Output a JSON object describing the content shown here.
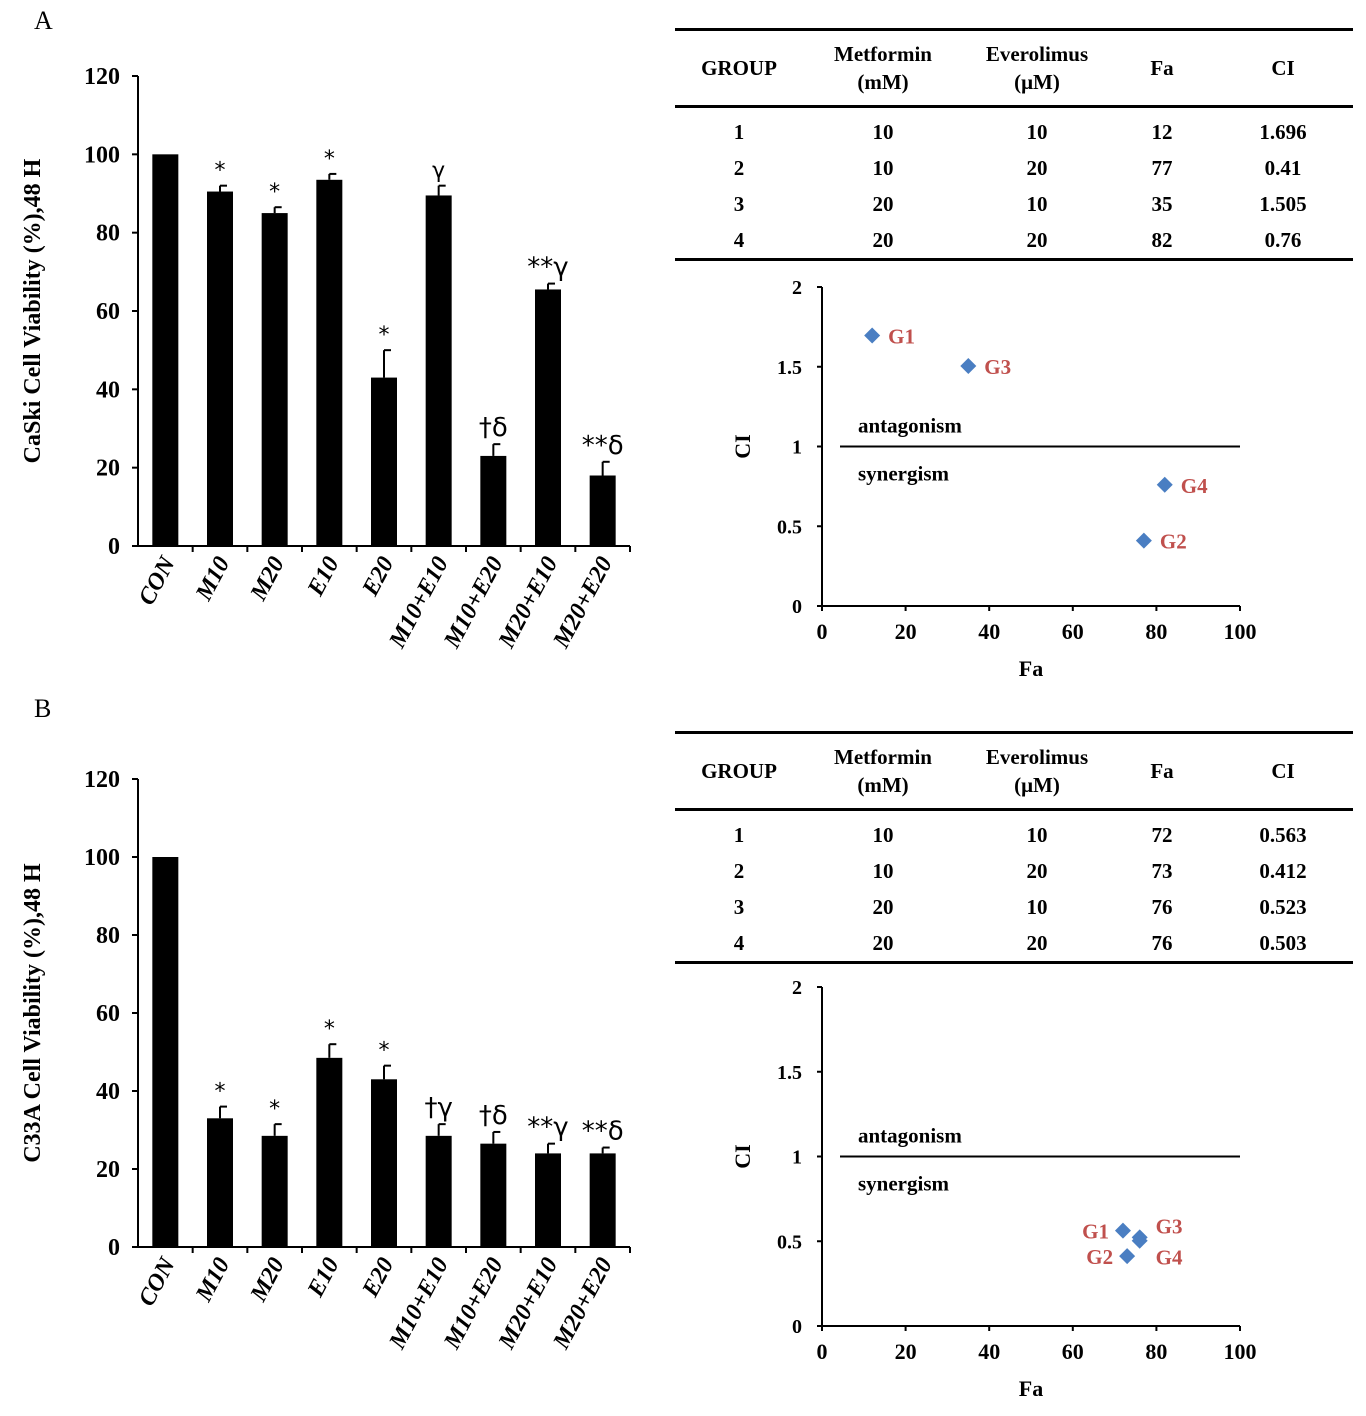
{
  "panels": [
    {
      "letter": "A",
      "bar_chart": {
        "type": "bar",
        "ylabel": "CaSki  Cell Viability (%),48 H",
        "ylim": [
          0,
          120
        ],
        "yticks": [
          0,
          20,
          40,
          60,
          80,
          100,
          120
        ],
        "categories": [
          "CON",
          "M10",
          "M20",
          "E10",
          "E20",
          "M10+E10",
          "M10+E20",
          "M20+E10",
          "M20+E20"
        ],
        "values": [
          100,
          90.5,
          85,
          93.5,
          43,
          89.5,
          23,
          65.5,
          18
        ],
        "errors": [
          0,
          1.5,
          1.5,
          1.5,
          7,
          2.5,
          3,
          1.5,
          3.5
        ],
        "annotations": [
          "",
          "*",
          "*",
          "*",
          "*",
          "γ",
          "†δ",
          "**γ",
          "**δ"
        ]
      },
      "table": {
        "headers": [
          "GROUP",
          "Metformin (mM)",
          "Everolimus (μM)",
          "Fa",
          "CI"
        ],
        "rows": [
          [
            "1",
            "10",
            "10",
            "12",
            "1.696"
          ],
          [
            "2",
            "10",
            "20",
            "77",
            "0.41"
          ],
          [
            "3",
            "20",
            "10",
            "35",
            "1.505"
          ],
          [
            "4",
            "20",
            "20",
            "82",
            "0.76"
          ]
        ]
      },
      "scatter_chart": {
        "type": "scatter",
        "xlabel": "Fa",
        "ylabel": "CI",
        "xlim": [
          0,
          100
        ],
        "ylim": [
          0,
          2
        ],
        "xticks": [
          0,
          20,
          40,
          60,
          80,
          100
        ],
        "yticks": [
          0,
          0.5,
          1,
          1.5,
          2
        ],
        "reference_line": 1,
        "line_label_above": "antagonism",
        "line_label_below": "synergism",
        "points": [
          {
            "label": "G1",
            "x": 12,
            "y": 1.696,
            "label_side": "right"
          },
          {
            "label": "G2",
            "x": 77,
            "y": 0.41,
            "label_side": "right"
          },
          {
            "label": "G3",
            "x": 35,
            "y": 1.505,
            "label_side": "right"
          },
          {
            "label": "G4",
            "x": 82,
            "y": 0.76,
            "label_side": "right"
          }
        ],
        "marker_color": "#4A7EC2",
        "label_color": "#C0504D"
      }
    },
    {
      "letter": "B",
      "bar_chart": {
        "type": "bar",
        "ylabel": "C33A  Cell Viability (%),48 H",
        "ylim": [
          0,
          120
        ],
        "yticks": [
          0,
          20,
          40,
          60,
          80,
          100,
          120
        ],
        "categories": [
          "CON",
          "M10",
          "M20",
          "E10",
          "E20",
          "M10+E10",
          "M10+E20",
          "M20+E10",
          "M20+E20"
        ],
        "values": [
          100,
          33,
          28.5,
          48.5,
          43,
          28.5,
          26.5,
          24,
          24
        ],
        "errors": [
          0,
          3,
          3,
          3.5,
          3.5,
          3,
          3,
          2.5,
          1.5
        ],
        "annotations": [
          "",
          "*",
          "*",
          "*",
          "*",
          "†γ",
          "†δ",
          "**γ",
          "**δ"
        ]
      },
      "table": {
        "headers": [
          "GROUP",
          "Metformin (mM)",
          "Everolimus (μM)",
          "Fa",
          "CI"
        ],
        "rows": [
          [
            "1",
            "10",
            "10",
            "72",
            "0.563"
          ],
          [
            "2",
            "10",
            "20",
            "73",
            "0.412"
          ],
          [
            "3",
            "20",
            "10",
            "76",
            "0.523"
          ],
          [
            "4",
            "20",
            "20",
            "76",
            "0.503"
          ]
        ]
      },
      "scatter_chart": {
        "type": "scatter",
        "xlabel": "Fa",
        "ylabel": "CI",
        "xlim": [
          0,
          100
        ],
        "ylim": [
          0,
          2
        ],
        "xticks": [
          0,
          20,
          40,
          60,
          80,
          100
        ],
        "yticks": [
          0,
          0.5,
          1,
          1.5,
          2
        ],
        "reference_line": 1,
        "line_label_above": "antagonism",
        "line_label_below": "synergism",
        "points": [
          {
            "label": "G1",
            "x": 72,
            "y": 0.563,
            "label_side": "left"
          },
          {
            "label": "G2",
            "x": 73,
            "y": 0.412,
            "label_side": "left"
          },
          {
            "label": "G3",
            "x": 76,
            "y": 0.523,
            "label_side": "upper-right"
          },
          {
            "label": "G4",
            "x": 76,
            "y": 0.503,
            "label_side": "lower-right"
          }
        ],
        "marker_color": "#4A7EC2",
        "label_color": "#C0504D"
      }
    }
  ],
  "chart_data": [
    {
      "type": "bar",
      "ylabel": "CaSki  Cell Viability (%),48 H",
      "categories": [
        "CON",
        "M10",
        "M20",
        "E10",
        "E20",
        "M10+E10",
        "M10+E20",
        "M20+E10",
        "M20+E20"
      ],
      "values": [
        100,
        90.5,
        85,
        93.5,
        43,
        89.5,
        23,
        65.5,
        18
      ],
      "ylim": [
        0,
        120
      ]
    },
    {
      "type": "scatter",
      "xlabel": "Fa",
      "ylabel": "CI",
      "x": [
        12,
        77,
        35,
        82
      ],
      "y": [
        1.696,
        0.41,
        1.505,
        0.76
      ],
      "xlim": [
        0,
        100
      ],
      "ylim": [
        0,
        2
      ]
    },
    {
      "type": "bar",
      "ylabel": "C33A  Cell Viability (%),48 H",
      "categories": [
        "CON",
        "M10",
        "M20",
        "E10",
        "E20",
        "M10+E10",
        "M10+E20",
        "M20+E10",
        "M20+E20"
      ],
      "values": [
        100,
        33,
        28.5,
        48.5,
        43,
        28.5,
        26.5,
        24,
        24
      ],
      "ylim": [
        0,
        120
      ]
    },
    {
      "type": "scatter",
      "xlabel": "Fa",
      "ylabel": "CI",
      "x": [
        72,
        73,
        76,
        76
      ],
      "y": [
        0.563,
        0.412,
        0.523,
        0.503
      ],
      "xlim": [
        0,
        100
      ],
      "ylim": [
        0,
        2
      ]
    }
  ]
}
